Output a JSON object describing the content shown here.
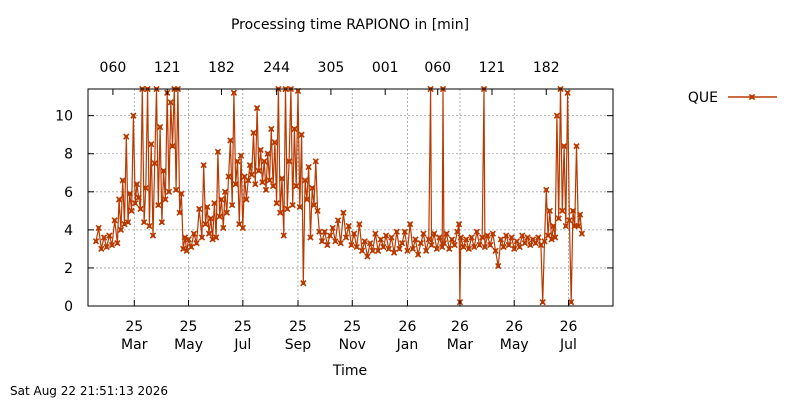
{
  "chart_data": {
    "type": "line",
    "title": "Processing time RAPIONO in [min]",
    "xlabel": "Time",
    "ylabel": "",
    "ylim": [
      0,
      11.4
    ],
    "y_ticks": [
      0,
      2,
      4,
      6,
      8,
      10
    ],
    "x_range": [
      "2025-02-01",
      "2026-09-14"
    ],
    "x_ticks_bottom": [
      {
        "date": "2025-03-25",
        "day": "25",
        "month": "Mar"
      },
      {
        "date": "2025-05-25",
        "day": "25",
        "month": "May"
      },
      {
        "date": "2025-07-25",
        "day": "25",
        "month": "Jul"
      },
      {
        "date": "2025-09-25",
        "day": "25",
        "month": "Sep"
      },
      {
        "date": "2025-11-25",
        "day": "25",
        "month": "Nov"
      },
      {
        "date": "2026-01-26",
        "day": "26",
        "month": "Jan"
      },
      {
        "date": "2026-03-26",
        "day": "26",
        "month": "Mar"
      },
      {
        "date": "2026-05-26",
        "day": "26",
        "month": "May"
      },
      {
        "date": "2026-07-26",
        "day": "26",
        "month": "Jul"
      }
    ],
    "x_ticks_top": [
      {
        "date": "2025-03-01",
        "label": "060"
      },
      {
        "date": "2025-05-01",
        "label": "121"
      },
      {
        "date": "2025-07-01",
        "label": "182"
      },
      {
        "date": "2025-09-01",
        "label": "244"
      },
      {
        "date": "2025-11-01",
        "label": "305"
      },
      {
        "date": "2026-01-01",
        "label": "001"
      },
      {
        "date": "2026-03-01",
        "label": "060"
      },
      {
        "date": "2026-05-01",
        "label": "121"
      },
      {
        "date": "2026-07-01",
        "label": "182"
      }
    ],
    "grid": true,
    "legend_position": "top-right, outside plot",
    "series": [
      {
        "name": "QUE",
        "color": "#b83a00",
        "marker": "x",
        "points": [
          [
            "2025-02-10",
            3.4
          ],
          [
            "2025-02-13",
            4.1
          ],
          [
            "2025-02-16",
            3.0
          ],
          [
            "2025-02-19",
            3.6
          ],
          [
            "2025-02-22",
            3.1
          ],
          [
            "2025-02-25",
            3.7
          ],
          [
            "2025-02-28",
            3.2
          ],
          [
            "2025-03-03",
            4.5
          ],
          [
            "2025-03-06",
            3.3
          ],
          [
            "2025-03-08",
            5.6
          ],
          [
            "2025-03-10",
            4.0
          ],
          [
            "2025-03-12",
            6.6
          ],
          [
            "2025-03-14",
            4.3
          ],
          [
            "2025-03-16",
            8.9
          ],
          [
            "2025-03-18",
            4.4
          ],
          [
            "2025-03-20",
            5.9
          ],
          [
            "2025-03-22",
            5.0
          ],
          [
            "2025-03-24",
            10.0
          ],
          [
            "2025-03-26",
            5.4
          ],
          [
            "2025-03-28",
            6.4
          ],
          [
            "2025-03-30",
            5.7
          ],
          [
            "2025-04-01",
            5.1
          ],
          [
            "2025-04-03",
            11.4
          ],
          [
            "2025-04-05",
            4.4
          ],
          [
            "2025-04-07",
            6.2
          ],
          [
            "2025-04-09",
            11.4
          ],
          [
            "2025-04-11",
            4.2
          ],
          [
            "2025-04-13",
            8.5
          ],
          [
            "2025-04-15",
            3.7
          ],
          [
            "2025-04-17",
            7.5
          ],
          [
            "2025-04-19",
            11.4
          ],
          [
            "2025-04-21",
            5.3
          ],
          [
            "2025-04-23",
            9.4
          ],
          [
            "2025-04-25",
            4.4
          ],
          [
            "2025-04-27",
            7.1
          ],
          [
            "2025-04-29",
            5.6
          ],
          [
            "2025-05-01",
            11.2
          ],
          [
            "2025-05-03",
            6.0
          ],
          [
            "2025-05-05",
            10.7
          ],
          [
            "2025-05-07",
            8.4
          ],
          [
            "2025-05-09",
            11.4
          ],
          [
            "2025-05-11",
            6.1
          ],
          [
            "2025-05-13",
            11.4
          ],
          [
            "2025-05-15",
            4.9
          ],
          [
            "2025-05-17",
            5.9
          ],
          [
            "2025-05-19",
            3.0
          ],
          [
            "2025-05-21",
            3.6
          ],
          [
            "2025-05-23",
            2.9
          ],
          [
            "2025-05-25",
            3.5
          ],
          [
            "2025-05-28",
            3.1
          ],
          [
            "2025-05-31",
            3.8
          ],
          [
            "2025-06-03",
            3.3
          ],
          [
            "2025-06-06",
            5.1
          ],
          [
            "2025-06-09",
            3.6
          ],
          [
            "2025-06-11",
            7.4
          ],
          [
            "2025-06-13",
            4.3
          ],
          [
            "2025-06-15",
            5.2
          ],
          [
            "2025-06-17",
            3.8
          ],
          [
            "2025-06-19",
            4.6
          ],
          [
            "2025-06-21",
            3.5
          ],
          [
            "2025-06-23",
            5.4
          ],
          [
            "2025-06-25",
            3.6
          ],
          [
            "2025-06-27",
            8.1
          ],
          [
            "2025-06-29",
            4.7
          ],
          [
            "2025-07-01",
            5.6
          ],
          [
            "2025-07-03",
            4.1
          ],
          [
            "2025-07-05",
            6.0
          ],
          [
            "2025-07-07",
            4.9
          ],
          [
            "2025-07-09",
            6.8
          ],
          [
            "2025-07-11",
            8.7
          ],
          [
            "2025-07-13",
            5.3
          ],
          [
            "2025-07-15",
            11.2
          ],
          [
            "2025-07-17",
            6.4
          ],
          [
            "2025-07-19",
            7.6
          ],
          [
            "2025-07-21",
            4.3
          ],
          [
            "2025-07-23",
            7.9
          ],
          [
            "2025-07-25",
            4.1
          ],
          [
            "2025-07-27",
            6.8
          ],
          [
            "2025-07-29",
            5.6
          ],
          [
            "2025-07-31",
            6.6
          ],
          [
            "2025-08-02",
            7.4
          ],
          [
            "2025-08-04",
            6.9
          ],
          [
            "2025-08-06",
            9.1
          ],
          [
            "2025-08-08",
            6.4
          ],
          [
            "2025-08-10",
            10.4
          ],
          [
            "2025-08-12",
            7.1
          ],
          [
            "2025-08-14",
            8.2
          ],
          [
            "2025-08-16",
            6.5
          ],
          [
            "2025-08-18",
            7.6
          ],
          [
            "2025-08-20",
            6.1
          ],
          [
            "2025-08-22",
            8.0
          ],
          [
            "2025-08-24",
            6.6
          ],
          [
            "2025-08-26",
            9.3
          ],
          [
            "2025-08-28",
            6.3
          ],
          [
            "2025-08-30",
            8.6
          ],
          [
            "2025-09-01",
            5.4
          ],
          [
            "2025-09-03",
            11.4
          ],
          [
            "2025-09-05",
            4.9
          ],
          [
            "2025-09-07",
            6.7
          ],
          [
            "2025-09-09",
            3.7
          ],
          [
            "2025-09-11",
            11.4
          ],
          [
            "2025-09-13",
            5.1
          ],
          [
            "2025-09-15",
            7.6
          ],
          [
            "2025-09-17",
            11.4
          ],
          [
            "2025-09-19",
            5.3
          ],
          [
            "2025-09-21",
            9.3
          ],
          [
            "2025-09-23",
            6.3
          ],
          [
            "2025-09-25",
            11.3
          ],
          [
            "2025-09-27",
            5.2
          ],
          [
            "2025-09-29",
            9.0
          ],
          [
            "2025-10-01",
            1.2
          ],
          [
            "2025-10-03",
            6.6
          ],
          [
            "2025-10-05",
            5.6
          ],
          [
            "2025-10-07",
            7.3
          ],
          [
            "2025-10-09",
            3.6
          ],
          [
            "2025-10-11",
            6.2
          ],
          [
            "2025-10-13",
            5.3
          ],
          [
            "2025-10-15",
            7.6
          ],
          [
            "2025-10-17",
            5.0
          ],
          [
            "2025-10-19",
            3.9
          ],
          [
            "2025-10-22",
            3.4
          ],
          [
            "2025-10-25",
            3.9
          ],
          [
            "2025-10-28",
            3.2
          ],
          [
            "2025-10-31",
            3.7
          ],
          [
            "2025-11-03",
            4.1
          ],
          [
            "2025-11-06",
            3.4
          ],
          [
            "2025-11-09",
            4.5
          ],
          [
            "2025-11-12",
            3.3
          ],
          [
            "2025-11-15",
            4.9
          ],
          [
            "2025-11-18",
            3.6
          ],
          [
            "2025-11-21",
            4.2
          ],
          [
            "2025-11-24",
            3.2
          ],
          [
            "2025-11-27",
            3.8
          ],
          [
            "2025-11-30",
            3.1
          ],
          [
            "2025-12-03",
            4.3
          ],
          [
            "2025-12-06",
            2.9
          ],
          [
            "2025-12-09",
            3.4
          ],
          [
            "2025-12-12",
            2.6
          ],
          [
            "2025-12-15",
            3.3
          ],
          [
            "2025-12-18",
            2.9
          ],
          [
            "2025-12-21",
            3.8
          ],
          [
            "2025-12-24",
            2.9
          ],
          [
            "2025-12-27",
            3.5
          ],
          [
            "2025-12-30",
            3.1
          ],
          [
            "2026-01-02",
            3.7
          ],
          [
            "2026-01-05",
            3.0
          ],
          [
            "2026-01-08",
            3.6
          ],
          [
            "2026-01-11",
            2.8
          ],
          [
            "2026-01-14",
            3.9
          ],
          [
            "2026-01-17",
            3.0
          ],
          [
            "2026-01-20",
            3.3
          ],
          [
            "2026-01-23",
            3.9
          ],
          [
            "2026-01-26",
            2.9
          ],
          [
            "2026-01-29",
            4.3
          ],
          [
            "2026-02-01",
            3.0
          ],
          [
            "2026-02-04",
            3.5
          ],
          [
            "2026-02-07",
            2.7
          ],
          [
            "2026-02-10",
            3.3
          ],
          [
            "2026-02-13",
            3.8
          ],
          [
            "2026-02-16",
            2.9
          ],
          [
            "2026-02-19",
            3.5
          ],
          [
            "2026-02-21",
            11.4
          ],
          [
            "2026-02-22",
            3.2
          ],
          [
            "2026-02-25",
            3.8
          ],
          [
            "2026-02-28",
            3.0
          ],
          [
            "2026-03-03",
            3.6
          ],
          [
            "2026-03-06",
            3.1
          ],
          [
            "2026-03-07",
            11.4
          ],
          [
            "2026-03-08",
            3.3
          ],
          [
            "2026-03-11",
            3.8
          ],
          [
            "2026-03-14",
            3.0
          ],
          [
            "2026-03-17",
            3.5
          ],
          [
            "2026-03-20",
            3.2
          ],
          [
            "2026-03-23",
            3.9
          ],
          [
            "2026-03-25",
            4.3
          ],
          [
            "2026-03-26",
            0.2
          ],
          [
            "2026-03-27",
            3.6
          ],
          [
            "2026-03-30",
            3.1
          ],
          [
            "2026-04-02",
            3.5
          ],
          [
            "2026-04-05",
            3.0
          ],
          [
            "2026-04-08",
            3.6
          ],
          [
            "2026-04-11",
            3.1
          ],
          [
            "2026-04-14",
            3.9
          ],
          [
            "2026-04-17",
            3.2
          ],
          [
            "2026-04-20",
            3.6
          ],
          [
            "2026-04-22",
            11.4
          ],
          [
            "2026-04-23",
            3.1
          ],
          [
            "2026-04-26",
            3.7
          ],
          [
            "2026-04-29",
            3.2
          ],
          [
            "2026-05-02",
            3.8
          ],
          [
            "2026-05-05",
            2.9
          ],
          [
            "2026-05-08",
            2.1
          ],
          [
            "2026-05-11",
            3.5
          ],
          [
            "2026-05-14",
            3.1
          ],
          [
            "2026-05-17",
            3.7
          ],
          [
            "2026-05-20",
            3.2
          ],
          [
            "2026-05-23",
            3.6
          ],
          [
            "2026-05-26",
            3.0
          ],
          [
            "2026-05-29",
            3.4
          ],
          [
            "2026-06-01",
            3.1
          ],
          [
            "2026-06-04",
            3.7
          ],
          [
            "2026-06-07",
            3.3
          ],
          [
            "2026-06-10",
            3.6
          ],
          [
            "2026-06-13",
            3.2
          ],
          [
            "2026-06-16",
            3.5
          ],
          [
            "2026-06-19",
            3.3
          ],
          [
            "2026-06-22",
            3.6
          ],
          [
            "2026-06-25",
            3.2
          ],
          [
            "2026-06-27",
            0.2
          ],
          [
            "2026-06-29",
            3.4
          ],
          [
            "2026-07-01",
            6.1
          ],
          [
            "2026-07-03",
            3.7
          ],
          [
            "2026-07-05",
            5.0
          ],
          [
            "2026-07-07",
            3.5
          ],
          [
            "2026-07-09",
            4.2
          ],
          [
            "2026-07-11",
            3.6
          ],
          [
            "2026-07-13",
            10.0
          ],
          [
            "2026-07-15",
            4.6
          ],
          [
            "2026-07-17",
            11.4
          ],
          [
            "2026-07-19",
            5.0
          ],
          [
            "2026-07-21",
            8.4
          ],
          [
            "2026-07-23",
            4.2
          ],
          [
            "2026-07-25",
            11.2
          ],
          [
            "2026-07-27",
            4.5
          ],
          [
            "2026-07-29",
            0.2
          ],
          [
            "2026-07-31",
            5.0
          ],
          [
            "2026-08-02",
            4.2
          ],
          [
            "2026-08-04",
            8.4
          ],
          [
            "2026-08-06",
            4.2
          ],
          [
            "2026-08-08",
            4.8
          ],
          [
            "2026-08-10",
            3.8
          ]
        ]
      }
    ]
  },
  "timestamp": "Sat Aug 22 21:51:13 2026"
}
